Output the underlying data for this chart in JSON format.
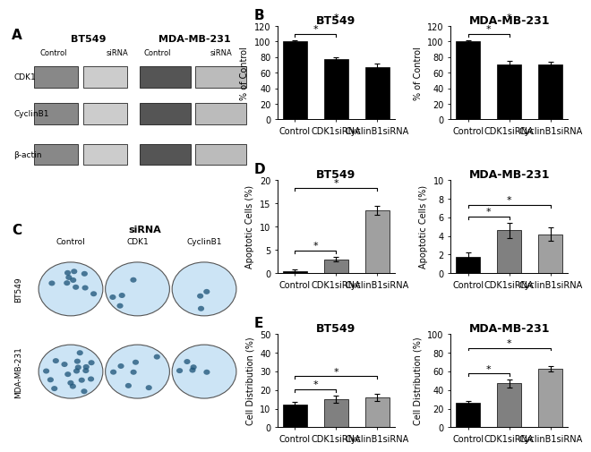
{
  "panel_B_BT549": {
    "title": "BT549",
    "categories": [
      "Control",
      "CDK1siRNA",
      "CyclinB1siRNA"
    ],
    "values": [
      100,
      77,
      67
    ],
    "errors": [
      2,
      3,
      5
    ],
    "ylabel": "% of Control",
    "ylim": [
      0,
      120
    ],
    "yticks": [
      0,
      20,
      40,
      60,
      80,
      100,
      120
    ],
    "bar_color": [
      "#000000",
      "#000000",
      "#000000"
    ],
    "sig_pairs": [
      [
        0,
        1,
        "*"
      ],
      [
        0,
        2,
        "*"
      ]
    ]
  },
  "panel_B_MDA": {
    "title": "MDA-MB-231",
    "categories": [
      "Control",
      "CDK1siRNA",
      "CyclinB1siRNA"
    ],
    "values": [
      100,
      70,
      70
    ],
    "errors": [
      2,
      5,
      4
    ],
    "ylabel": "% of Control",
    "ylim": [
      0,
      120
    ],
    "yticks": [
      0,
      20,
      40,
      60,
      80,
      100,
      120
    ],
    "bar_color": [
      "#000000",
      "#000000",
      "#000000"
    ],
    "sig_pairs": [
      [
        0,
        1,
        "*"
      ],
      [
        0,
        2,
        "*"
      ]
    ]
  },
  "panel_D_BT549": {
    "title": "BT549",
    "categories": [
      "Control",
      "CDK1siRNA",
      "CyclinB1siRNA"
    ],
    "values": [
      0.5,
      3.0,
      13.5
    ],
    "errors": [
      0.3,
      0.5,
      1.0
    ],
    "ylabel": "Apoptotic Cells (%)",
    "ylim": [
      0,
      20
    ],
    "yticks": [
      0,
      5,
      10,
      15,
      20
    ],
    "bar_color": [
      "#000000",
      "#808080",
      "#a0a0a0"
    ],
    "sig_pairs": [
      [
        0,
        1,
        "*"
      ],
      [
        0,
        2,
        "*"
      ]
    ]
  },
  "panel_D_MDA": {
    "title": "MDA-MB-231",
    "categories": [
      "Control",
      "CDK1siRNA",
      "CyclinB1siRNA"
    ],
    "values": [
      1.8,
      4.6,
      4.2
    ],
    "errors": [
      0.4,
      0.8,
      0.7
    ],
    "ylabel": "Apoptotic Cells (%)",
    "ylim": [
      0,
      10
    ],
    "yticks": [
      0,
      2,
      4,
      6,
      8,
      10
    ],
    "bar_color": [
      "#000000",
      "#808080",
      "#a0a0a0"
    ],
    "sig_pairs": [
      [
        0,
        1,
        "*"
      ],
      [
        0,
        2,
        "*"
      ]
    ]
  },
  "panel_E_BT549": {
    "title": "BT549",
    "categories": [
      "Control",
      "CDK1siRNA",
      "CyclinB1siRNA"
    ],
    "values": [
      12,
      15,
      16
    ],
    "errors": [
      1.5,
      2.0,
      1.8
    ],
    "ylabel": "Cell Distribution (%)",
    "ylim": [
      0,
      50
    ],
    "yticks": [
      0,
      10,
      20,
      30,
      40,
      50
    ],
    "bar_color": [
      "#000000",
      "#808080",
      "#a0a0a0"
    ],
    "sig_pairs": [
      [
        0,
        1,
        "*"
      ],
      [
        0,
        2,
        "*"
      ]
    ]
  },
  "panel_E_MDA": {
    "title": "MDA-MB-231",
    "categories": [
      "Control",
      "CDK1siRNA",
      "CyclinB1siRNA"
    ],
    "values": [
      26,
      47,
      63
    ],
    "errors": [
      2,
      4,
      3
    ],
    "ylabel": "Cell Distribution (%)",
    "ylim": [
      0,
      100
    ],
    "yticks": [
      0,
      20,
      40,
      60,
      80,
      100
    ],
    "bar_color": [
      "#000000",
      "#808080",
      "#a0a0a0"
    ],
    "sig_pairs": [
      [
        0,
        1,
        "*"
      ],
      [
        0,
        2,
        "*"
      ]
    ]
  },
  "panel_A_rows": [
    "CDK1",
    "CyclinB1",
    "β-actin"
  ],
  "panel_A_bt549_label": "BT549",
  "panel_A_mda_label": "MDA-MB-231",
  "panel_A_subcols": [
    "Control",
    "siRNA"
  ],
  "panel_C_sirna_label": "siRNA",
  "panel_C_col_headers": [
    "Control",
    "CDK1",
    "CyclinB1"
  ],
  "panel_C_row_labels": [
    "BT549",
    "MDA-MB-231"
  ],
  "label_fontsize": 9,
  "title_fontsize": 9,
  "axis_fontsize": 7,
  "panel_label_fontsize": 11
}
